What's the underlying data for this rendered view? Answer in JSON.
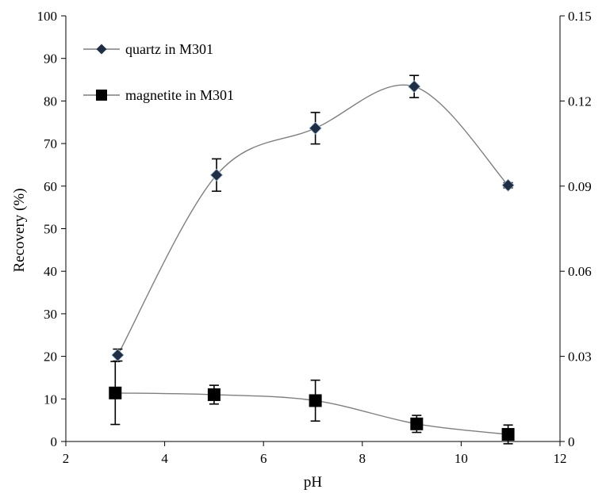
{
  "chart_data": {
    "type": "line",
    "xlabel": "pH",
    "ylabel": "Recovery (%)",
    "xlim": [
      2,
      12
    ],
    "ylim": [
      0,
      100
    ],
    "y2lim": [
      0,
      0.15
    ],
    "x_ticks": [
      "2",
      "4",
      "6",
      "8",
      "10",
      "12"
    ],
    "y_ticks": [
      "0",
      "10",
      "20",
      "30",
      "40",
      "50",
      "60",
      "70",
      "80",
      "90",
      "100"
    ],
    "y2_ticks": [
      "0",
      "0.03",
      "0.06",
      "0.09",
      "0.12",
      "0.15"
    ],
    "grid": false,
    "legend_position": "top-left",
    "series": [
      {
        "name": "quartz in M301",
        "marker": "diamond",
        "axis": "left",
        "x": [
          3.05,
          5.05,
          7.05,
          9.05,
          10.95
        ],
        "y": [
          20.3,
          62.6,
          73.6,
          83.4,
          60.2
        ],
        "err": [
          1.4,
          3.8,
          3.7,
          2.6,
          0.6
        ]
      },
      {
        "name": "magnetite in M301",
        "marker": "square",
        "axis": "right",
        "x": [
          3.0,
          5.0,
          7.05,
          9.1,
          10.95
        ],
        "y": [
          0.0171,
          0.0165,
          0.0144,
          0.0062,
          0.0025
        ],
        "err": [
          0.0111,
          0.0033,
          0.0072,
          0.003,
          0.0033
        ]
      }
    ],
    "colors": {
      "line": "#7f7f7f",
      "marker_quartz": "#1f2d45",
      "marker_magnetite": "#000000"
    }
  }
}
